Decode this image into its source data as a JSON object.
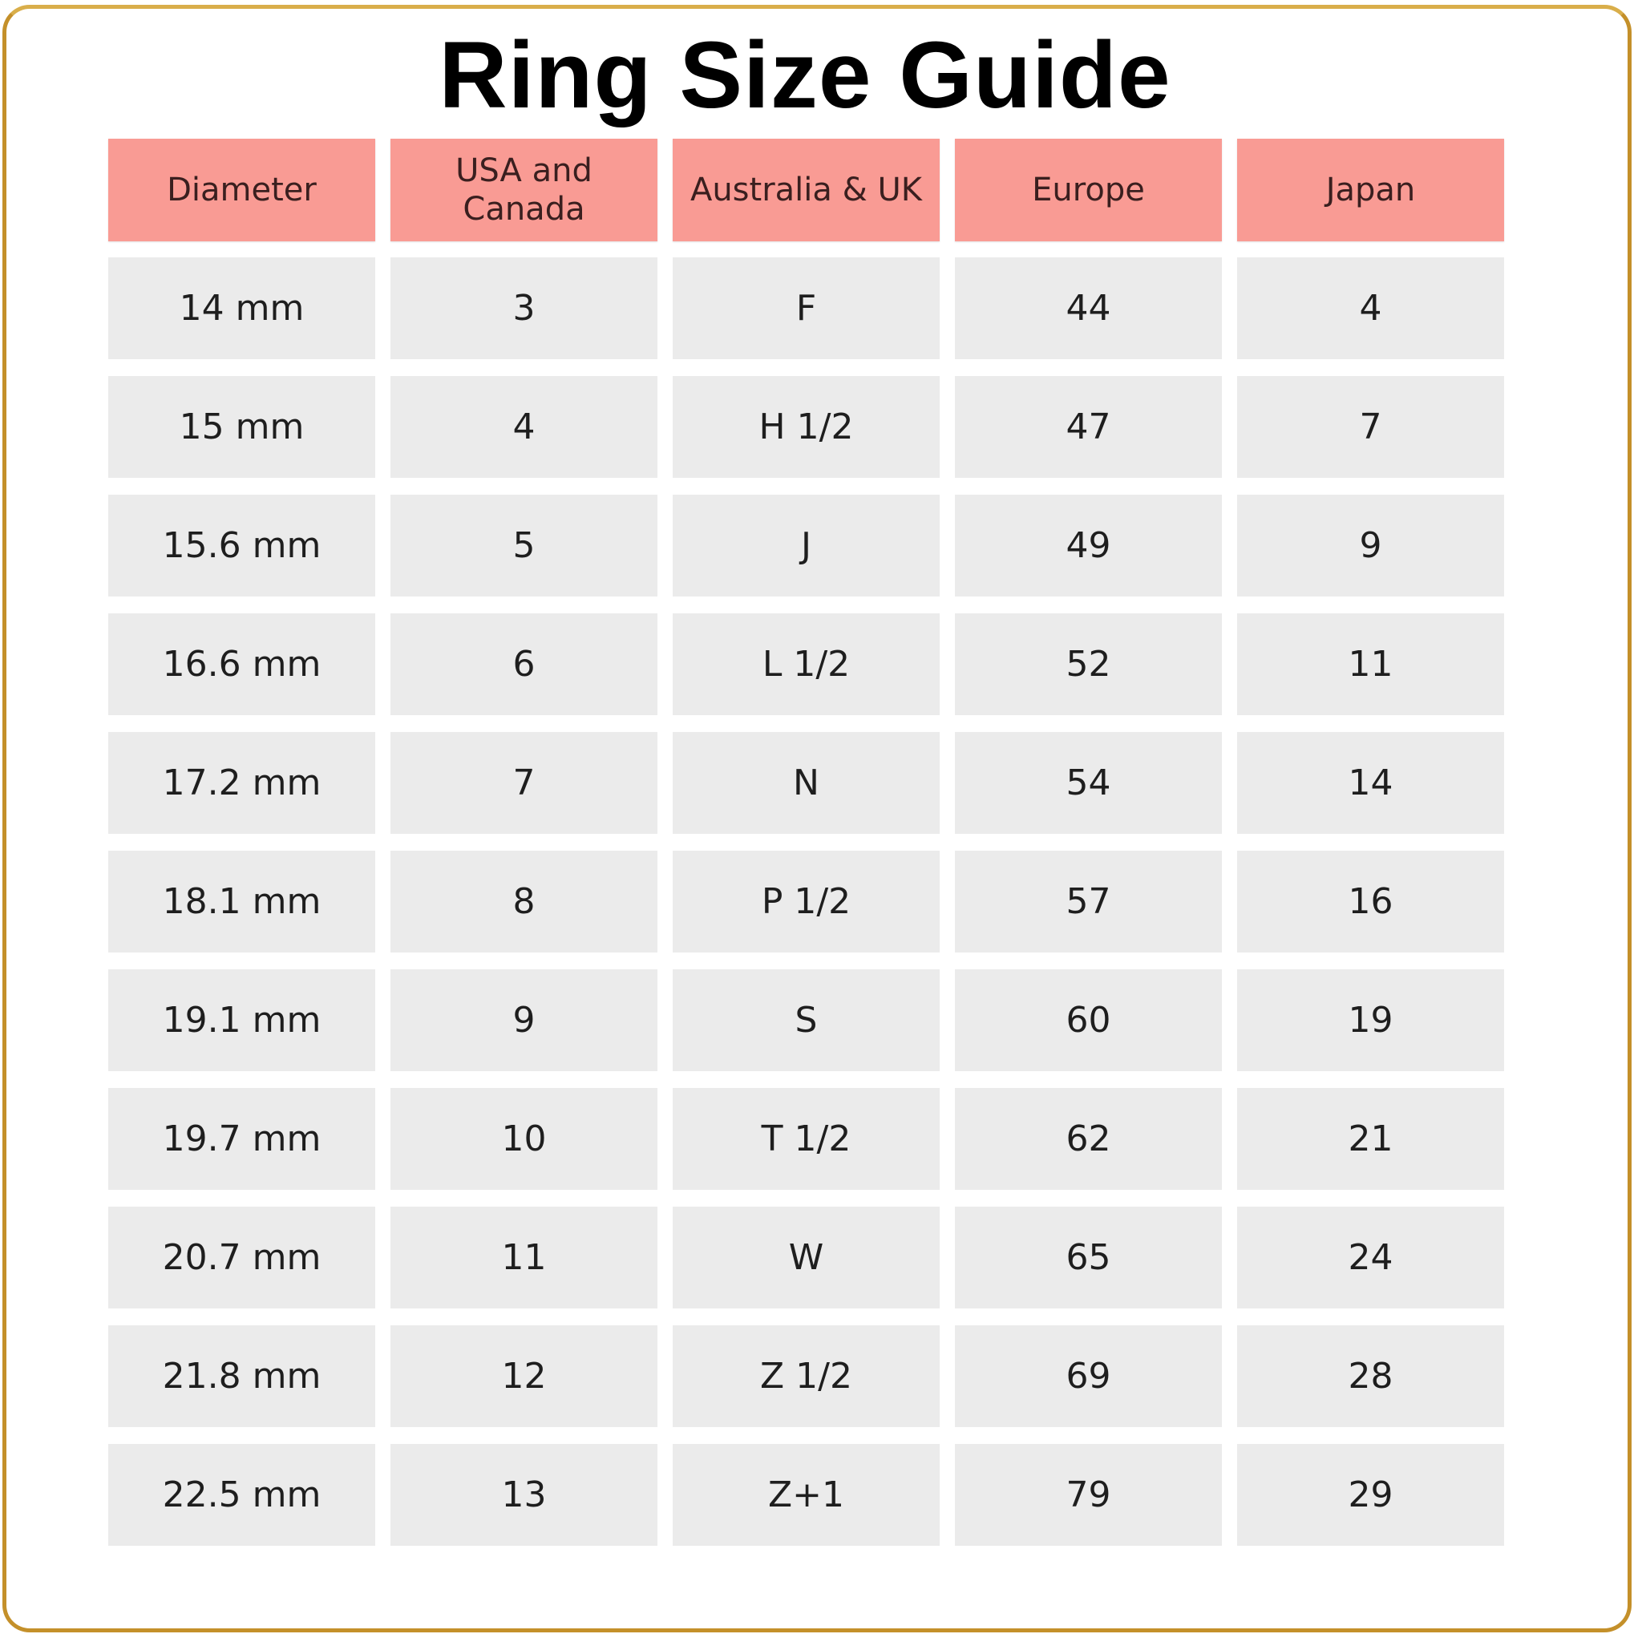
{
  "title": "Ring Size Guide",
  "colors": {
    "header_bg": "#f99b94",
    "cell_bg": "#ebebeb",
    "frame": "#c4902a"
  },
  "table": {
    "headers": [
      "Diameter",
      "USA and Canada",
      "Australia & UK",
      "Europe",
      "Japan"
    ],
    "rows": [
      [
        "14 mm",
        "3",
        "F",
        "44",
        "4"
      ],
      [
        "15 mm",
        "4",
        "H 1/2",
        "47",
        "7"
      ],
      [
        "15.6 mm",
        "5",
        "J",
        "49",
        "9"
      ],
      [
        "16.6 mm",
        "6",
        "L 1/2",
        "52",
        "11"
      ],
      [
        "17.2 mm",
        "7",
        "N",
        "54",
        "14"
      ],
      [
        "18.1 mm",
        "8",
        "P 1/2",
        "57",
        "16"
      ],
      [
        "19.1 mm",
        "9",
        "S",
        "60",
        "19"
      ],
      [
        "19.7 mm",
        "10",
        "T 1/2",
        "62",
        "21"
      ],
      [
        "20.7 mm",
        "11",
        "W",
        "65",
        "24"
      ],
      [
        "21.8 mm",
        "12",
        "Z 1/2",
        "69",
        "28"
      ],
      [
        "22.5 mm",
        "13",
        "Z+1",
        "79",
        "29"
      ]
    ]
  }
}
